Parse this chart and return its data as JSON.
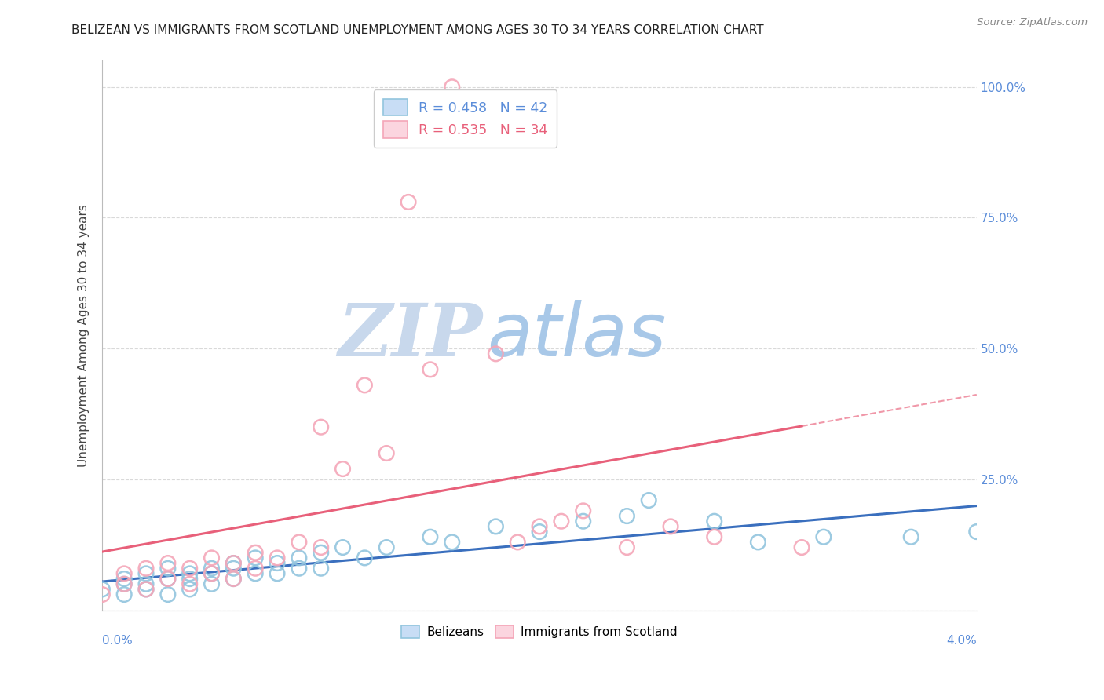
{
  "title": "BELIZEAN VS IMMIGRANTS FROM SCOTLAND UNEMPLOYMENT AMONG AGES 30 TO 34 YEARS CORRELATION CHART",
  "source": "Source: ZipAtlas.com",
  "ylabel": "Unemployment Among Ages 30 to 34 years",
  "legend_blue_r": "R = 0.458",
  "legend_blue_n": "N = 42",
  "legend_pink_r": "R = 0.535",
  "legend_pink_n": "N = 34",
  "blue_color": "#92c5de",
  "pink_color": "#f4a6b8",
  "blue_line_color": "#3a6fbe",
  "pink_line_color": "#e8607a",
  "blue_scatter_x": [
    0.0,
    0.001,
    0.001,
    0.001,
    0.002,
    0.002,
    0.002,
    0.003,
    0.003,
    0.003,
    0.004,
    0.004,
    0.004,
    0.005,
    0.005,
    0.005,
    0.006,
    0.006,
    0.006,
    0.007,
    0.007,
    0.008,
    0.008,
    0.009,
    0.009,
    0.01,
    0.01,
    0.011,
    0.012,
    0.013,
    0.015,
    0.016,
    0.018,
    0.02,
    0.022,
    0.024,
    0.025,
    0.028,
    0.03,
    0.033,
    0.037,
    0.04
  ],
  "blue_scatter_y": [
    0.04,
    0.03,
    0.05,
    0.06,
    0.04,
    0.05,
    0.07,
    0.03,
    0.06,
    0.08,
    0.04,
    0.06,
    0.07,
    0.05,
    0.07,
    0.08,
    0.06,
    0.08,
    0.09,
    0.07,
    0.1,
    0.07,
    0.09,
    0.08,
    0.1,
    0.08,
    0.11,
    0.12,
    0.1,
    0.12,
    0.14,
    0.13,
    0.16,
    0.15,
    0.17,
    0.18,
    0.21,
    0.17,
    0.13,
    0.14,
    0.14,
    0.15
  ],
  "pink_scatter_x": [
    0.0,
    0.001,
    0.001,
    0.002,
    0.002,
    0.003,
    0.003,
    0.004,
    0.004,
    0.005,
    0.005,
    0.006,
    0.006,
    0.007,
    0.007,
    0.008,
    0.009,
    0.01,
    0.01,
    0.011,
    0.012,
    0.013,
    0.014,
    0.015,
    0.016,
    0.018,
    0.019,
    0.02,
    0.021,
    0.022,
    0.024,
    0.026,
    0.028,
    0.032
  ],
  "pink_scatter_y": [
    0.03,
    0.05,
    0.07,
    0.04,
    0.08,
    0.06,
    0.09,
    0.05,
    0.08,
    0.07,
    0.1,
    0.06,
    0.09,
    0.08,
    0.11,
    0.1,
    0.13,
    0.12,
    0.35,
    0.27,
    0.43,
    0.3,
    0.78,
    0.46,
    1.0,
    0.49,
    0.13,
    0.16,
    0.17,
    0.19,
    0.12,
    0.16,
    0.14,
    0.12
  ],
  "xlim": [
    0.0,
    0.04
  ],
  "ylim": [
    0.0,
    1.05
  ],
  "background_color": "#ffffff",
  "watermark_zip": "ZIP",
  "watermark_atlas": "atlas",
  "watermark_color_zip": "#c8d8ec",
  "watermark_color_atlas": "#a8c8e8"
}
